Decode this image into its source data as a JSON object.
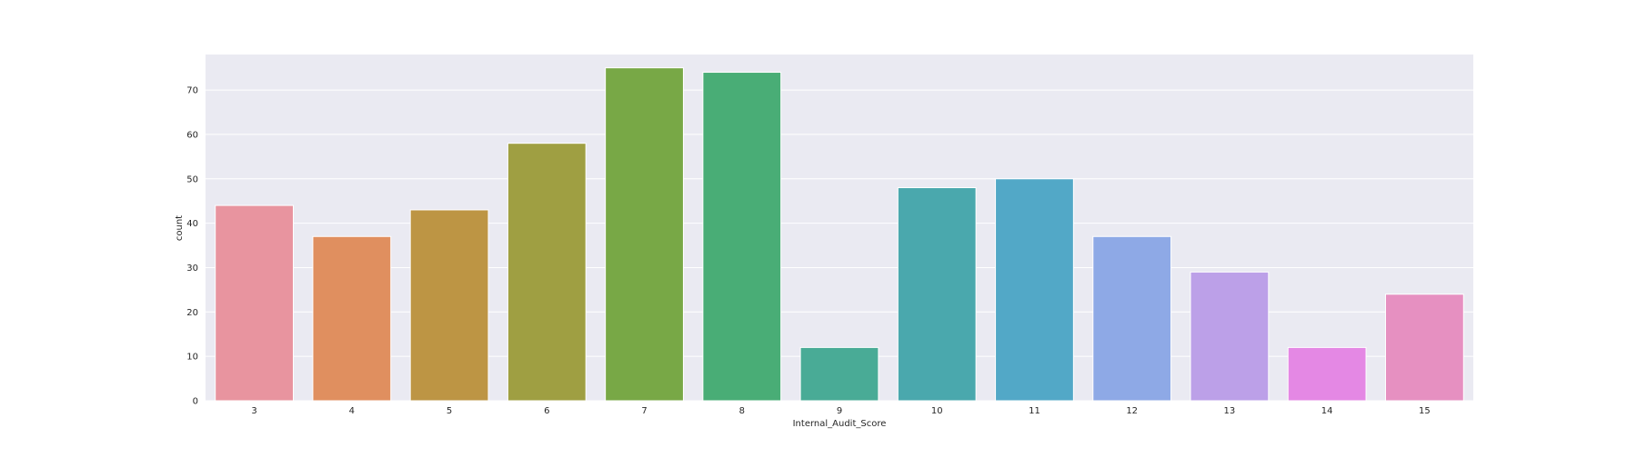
{
  "chart_data": {
    "type": "bar",
    "title": "",
    "xlabel": "Internal_Audit_Score",
    "ylabel": "count",
    "categories": [
      "3",
      "4",
      "5",
      "6",
      "7",
      "8",
      "9",
      "10",
      "11",
      "12",
      "13",
      "14",
      "15"
    ],
    "values": [
      44,
      37,
      43,
      58,
      75,
      74,
      12,
      48,
      50,
      37,
      29,
      12,
      24
    ],
    "ylim": [
      0,
      78
    ],
    "yticks": [
      "0",
      "10",
      "20",
      "30",
      "40",
      "50",
      "60",
      "70"
    ],
    "grid": true,
    "legend": "none",
    "colors": [
      "#e8949f",
      "#e08f5f",
      "#bd9544",
      "#9f9f42",
      "#78a846",
      "#49ad76",
      "#49ab96",
      "#4aa8ad",
      "#52a8c7",
      "#8ea9e6",
      "#bca0e8",
      "#e488e4",
      "#e690c1"
    ],
    "background": "#eaeaf2"
  }
}
